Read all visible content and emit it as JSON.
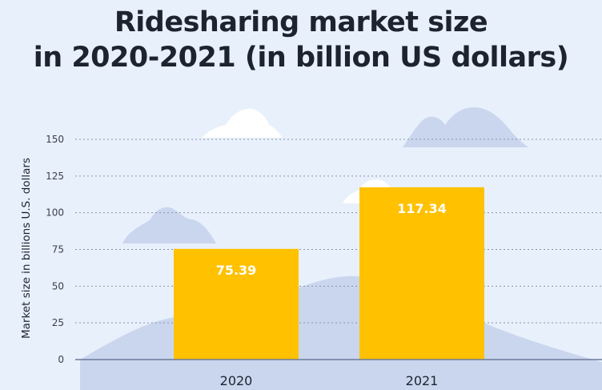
{
  "title_lines": [
    "Ridesharing market size",
    "in 2020-2021 (in billion US dollars)"
  ],
  "colors": {
    "background": "#e8f0fc",
    "bar": "#ffc100",
    "mountain": "#cad6ee",
    "cloud_white": "#ffffff",
    "grid": "#8a93a6",
    "axis": "#6b7a9a"
  },
  "chart_data": {
    "type": "bar",
    "title": "Ridesharing market size in 2020-2021 (in billion US dollars)",
    "ylabel": "Market size in billions U.S. dollars",
    "categories": [
      "2020",
      "2021"
    ],
    "values": [
      75.39,
      117.34
    ],
    "value_labels": [
      "75.39",
      "117.34"
    ],
    "ylim": [
      0,
      150
    ],
    "yticks": [
      0,
      25,
      50,
      75,
      100,
      125,
      150
    ],
    "grid": true,
    "legend": "none"
  }
}
